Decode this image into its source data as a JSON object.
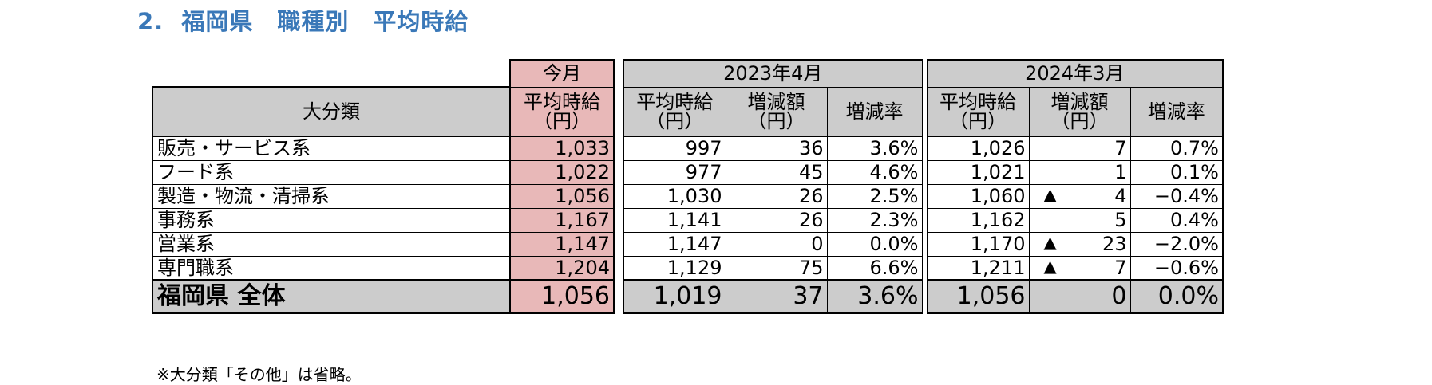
{
  "title": "2.  福岡県　職種別　平均時給",
  "table": {
    "header": {
      "current_month": "今月",
      "group_2023": "2023年4月",
      "group_2024": "2024年3月",
      "category": "大分類",
      "avg_wage": "平均時給",
      "change_amount": "増減額",
      "change_rate": "増減率",
      "yen_unit": "（円）"
    },
    "triangle": "▲",
    "rows": [
      {
        "category": "販売・サービス系",
        "current": "1,033",
        "y2023_avg": "997",
        "y2023_diff": "36",
        "y2023_rate": "3.6%",
        "y2024_avg": "1,026",
        "y2024_neg": false,
        "y2024_diff": "7",
        "y2024_rate": "0.7%"
      },
      {
        "category": "フード系",
        "current": "1,022",
        "y2023_avg": "977",
        "y2023_diff": "45",
        "y2023_rate": "4.6%",
        "y2024_avg": "1,021",
        "y2024_neg": false,
        "y2024_diff": "1",
        "y2024_rate": "0.1%"
      },
      {
        "category": "製造・物流・清掃系",
        "current": "1,056",
        "y2023_avg": "1,030",
        "y2023_diff": "26",
        "y2023_rate": "2.5%",
        "y2024_avg": "1,060",
        "y2024_neg": true,
        "y2024_diff": "4",
        "y2024_rate": "−0.4%"
      },
      {
        "category": "事務系",
        "current": "1,167",
        "y2023_avg": "1,141",
        "y2023_diff": "26",
        "y2023_rate": "2.3%",
        "y2024_avg": "1,162",
        "y2024_neg": false,
        "y2024_diff": "5",
        "y2024_rate": "0.4%"
      },
      {
        "category": "営業系",
        "current": "1,147",
        "y2023_avg": "1,147",
        "y2023_diff": "0",
        "y2023_rate": "0.0%",
        "y2024_avg": "1,170",
        "y2024_neg": true,
        "y2024_diff": "23",
        "y2024_rate": "−2.0%"
      },
      {
        "category": "専門職系",
        "current": "1,204",
        "y2023_avg": "1,129",
        "y2023_diff": "75",
        "y2023_rate": "6.6%",
        "y2024_avg": "1,211",
        "y2024_neg": true,
        "y2024_diff": "7",
        "y2024_rate": "−0.6%"
      }
    ],
    "total": {
      "category": "福岡県 全体",
      "current": "1,056",
      "y2023_avg": "1,019",
      "y2023_diff": "37",
      "y2023_rate": "3.6%",
      "y2024_avg": "1,056",
      "y2024_diff": "0",
      "y2024_rate": "0.0%"
    }
  },
  "footnote": "※大分類「その他」は省略。"
}
